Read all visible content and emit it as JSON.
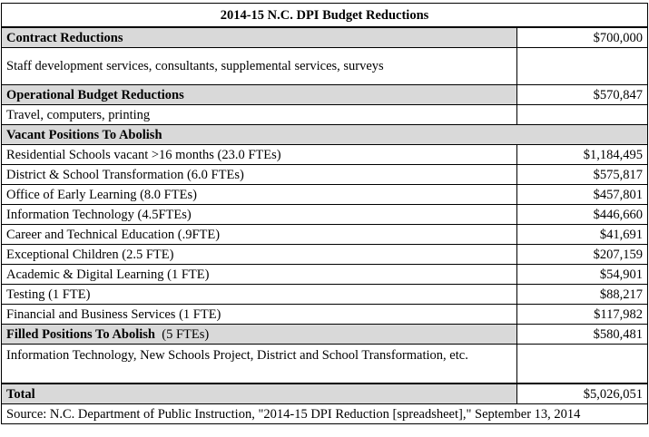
{
  "title": "2014-15 N.C. DPI Budget Reductions",
  "sections": {
    "contract": {
      "label": "Contract Reductions",
      "amount": "$700,000",
      "detail": "Staff development services, consultants, supplemental services, surveys"
    },
    "operational": {
      "label": "Operational Budget Reductions",
      "amount": "$570,847",
      "detail": "Travel, computers, printing"
    },
    "vacant": {
      "label": "Vacant Positions To Abolish",
      "items": [
        {
          "label": "Residential Schools vacant >16 months (23.0 FTEs)",
          "amount": "$1,184,495"
        },
        {
          "label": "District & School Transformation (6.0 FTEs)",
          "amount": "$575,817"
        },
        {
          "label": "Office of Early Learning (8.0 FTEs)",
          "amount": "$457,801"
        },
        {
          "label": "Information Technology (4.5FTEs)",
          "amount": "$446,660"
        },
        {
          "label": "Career and Technical Education (.9FTE)",
          "amount": "$41,691"
        },
        {
          "label": "Exceptional Children (2.5 FTE)",
          "amount": "$207,159"
        },
        {
          "label": "Academic & Digital Learning (1 FTE)",
          "amount": "$54,901"
        },
        {
          "label": "Testing (1 FTE)",
          "amount": "$88,217"
        },
        {
          "label": "Financial and Business Services (1 FTE)",
          "amount": "$117,982"
        }
      ]
    },
    "filled": {
      "label": "Filled Positions To Abolish",
      "fte": "(5 FTEs)",
      "amount": "$580,481",
      "detail": "Information Technology, New Schools Project, District and School Transformation, etc."
    }
  },
  "total": {
    "label": "Total",
    "amount": "$5,026,051"
  },
  "source": "Source: N.C. Department of Public Instruction, \"2014-15 DPI Reduction [spreadsheet],\" September 13, 2014"
}
